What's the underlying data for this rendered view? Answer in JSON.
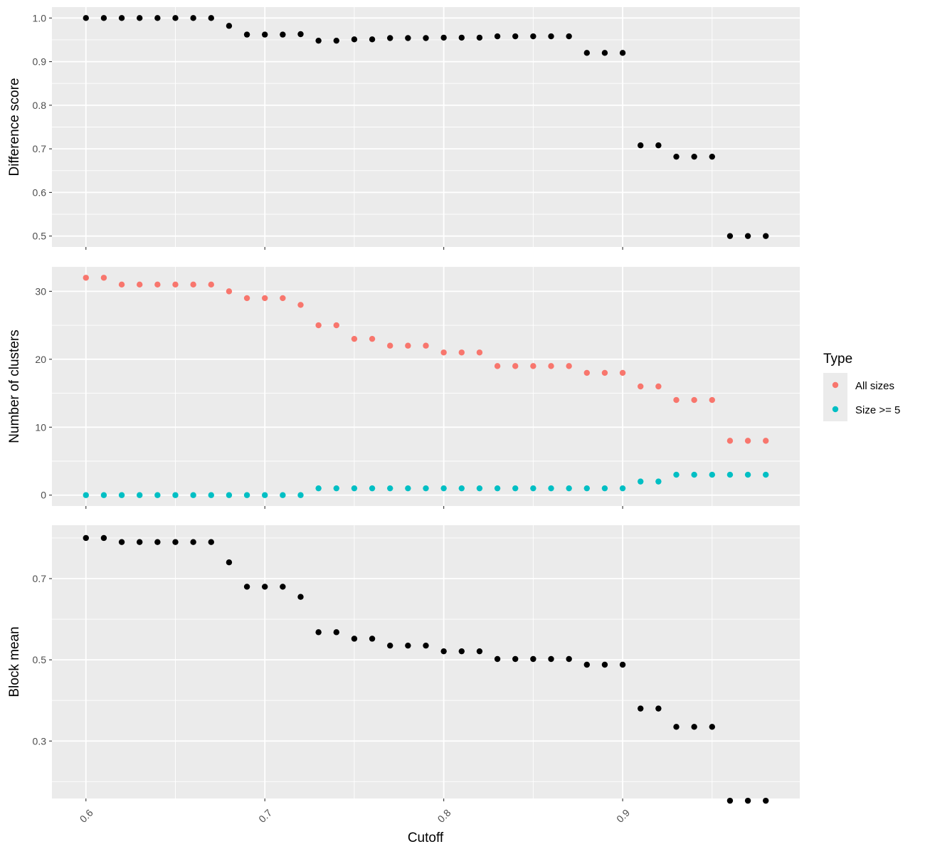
{
  "chart_data": {
    "type": "scatter",
    "x": [
      0.6,
      0.61,
      0.62,
      0.63,
      0.64,
      0.65,
      0.66,
      0.67,
      0.68,
      0.69,
      0.7,
      0.71,
      0.72,
      0.73,
      0.74,
      0.75,
      0.76,
      0.77,
      0.78,
      0.79,
      0.8,
      0.81,
      0.82,
      0.83,
      0.84,
      0.85,
      0.86,
      0.87,
      0.88,
      0.89,
      0.9,
      0.91,
      0.92,
      0.93,
      0.94,
      0.95,
      0.96,
      0.97,
      0.98
    ],
    "xlabel": "Cutoff",
    "xlim": [
      0.581,
      0.999
    ],
    "xticks": [
      0.6,
      0.7,
      0.8,
      0.9
    ],
    "xtick_labels": [
      "0.6",
      "0.7",
      "0.8",
      "0.9"
    ],
    "panels": [
      {
        "ylabel": "Difference score",
        "ylim": [
          0.475,
          1.025
        ],
        "yticks": [
          0.5,
          0.6,
          0.7,
          0.8,
          0.9,
          1.0
        ],
        "ytick_labels": [
          "0.5",
          "0.6",
          "0.7",
          "0.8",
          "0.9",
          "1.0"
        ],
        "yminor": [
          0.55,
          0.65,
          0.75,
          0.85,
          0.95
        ],
        "series": [
          {
            "color": "#000000",
            "values": [
              1.0,
              1.0,
              1.0,
              1.0,
              1.0,
              1.0,
              1.0,
              1.0,
              0.982,
              0.962,
              0.962,
              0.962,
              0.963,
              0.948,
              0.948,
              0.951,
              0.951,
              0.954,
              0.954,
              0.954,
              0.955,
              0.955,
              0.955,
              0.958,
              0.958,
              0.958,
              0.958,
              0.958,
              0.92,
              0.92,
              0.92,
              0.708,
              0.708,
              0.682,
              0.682,
              0.682,
              0.5,
              0.5,
              0.5
            ]
          }
        ]
      },
      {
        "ylabel": "Number of clusters",
        "ylim": [
          -1.6,
          33.6
        ],
        "yticks": [
          0,
          10,
          20,
          30
        ],
        "ytick_labels": [
          "0",
          "10",
          "20",
          "30"
        ],
        "yminor": [
          5,
          15,
          25
        ],
        "series": [
          {
            "name": "All sizes",
            "color": "#F8766D",
            "values": [
              32,
              32,
              31,
              31,
              31,
              31,
              31,
              31,
              30,
              29,
              29,
              29,
              28,
              25,
              25,
              23,
              23,
              22,
              22,
              22,
              21,
              21,
              21,
              19,
              19,
              19,
              19,
              19,
              18,
              18,
              18,
              16,
              16,
              14,
              14,
              14,
              8,
              8,
              8
            ]
          },
          {
            "name": "Size >= 5",
            "color": "#00BFC4",
            "values": [
              0,
              0,
              0,
              0,
              0,
              0,
              0,
              0,
              0,
              0,
              0,
              0,
              0,
              1,
              1,
              1,
              1,
              1,
              1,
              1,
              1,
              1,
              1,
              1,
              1,
              1,
              1,
              1,
              1,
              1,
              1,
              2,
              2,
              3,
              3,
              3,
              3,
              3,
              3
            ]
          }
        ]
      },
      {
        "ylabel": "Block mean",
        "ylim": [
          0.1585,
          0.8315
        ],
        "yticks": [
          0.3,
          0.5,
          0.7
        ],
        "ytick_labels": [
          "0.3",
          "0.5",
          "0.7"
        ],
        "yminor": [
          0.2,
          0.4,
          0.6,
          0.8
        ],
        "series": [
          {
            "color": "#000000",
            "values": [
              0.8,
              0.8,
              0.79,
              0.79,
              0.79,
              0.79,
              0.79,
              0.79,
              0.74,
              0.68,
              0.68,
              0.68,
              0.655,
              0.568,
              0.568,
              0.552,
              0.552,
              0.535,
              0.535,
              0.535,
              0.521,
              0.521,
              0.521,
              0.502,
              0.502,
              0.502,
              0.502,
              0.502,
              0.488,
              0.488,
              0.488,
              0.38,
              0.38,
              0.335,
              0.335,
              0.335,
              0.153,
              0.153,
              0.153
            ]
          }
        ]
      }
    ],
    "legend": {
      "title": "Type",
      "placement": "right",
      "entries": [
        "All sizes",
        "Size >= 5"
      ]
    },
    "background": "#EBEBEB",
    "grid": true
  }
}
